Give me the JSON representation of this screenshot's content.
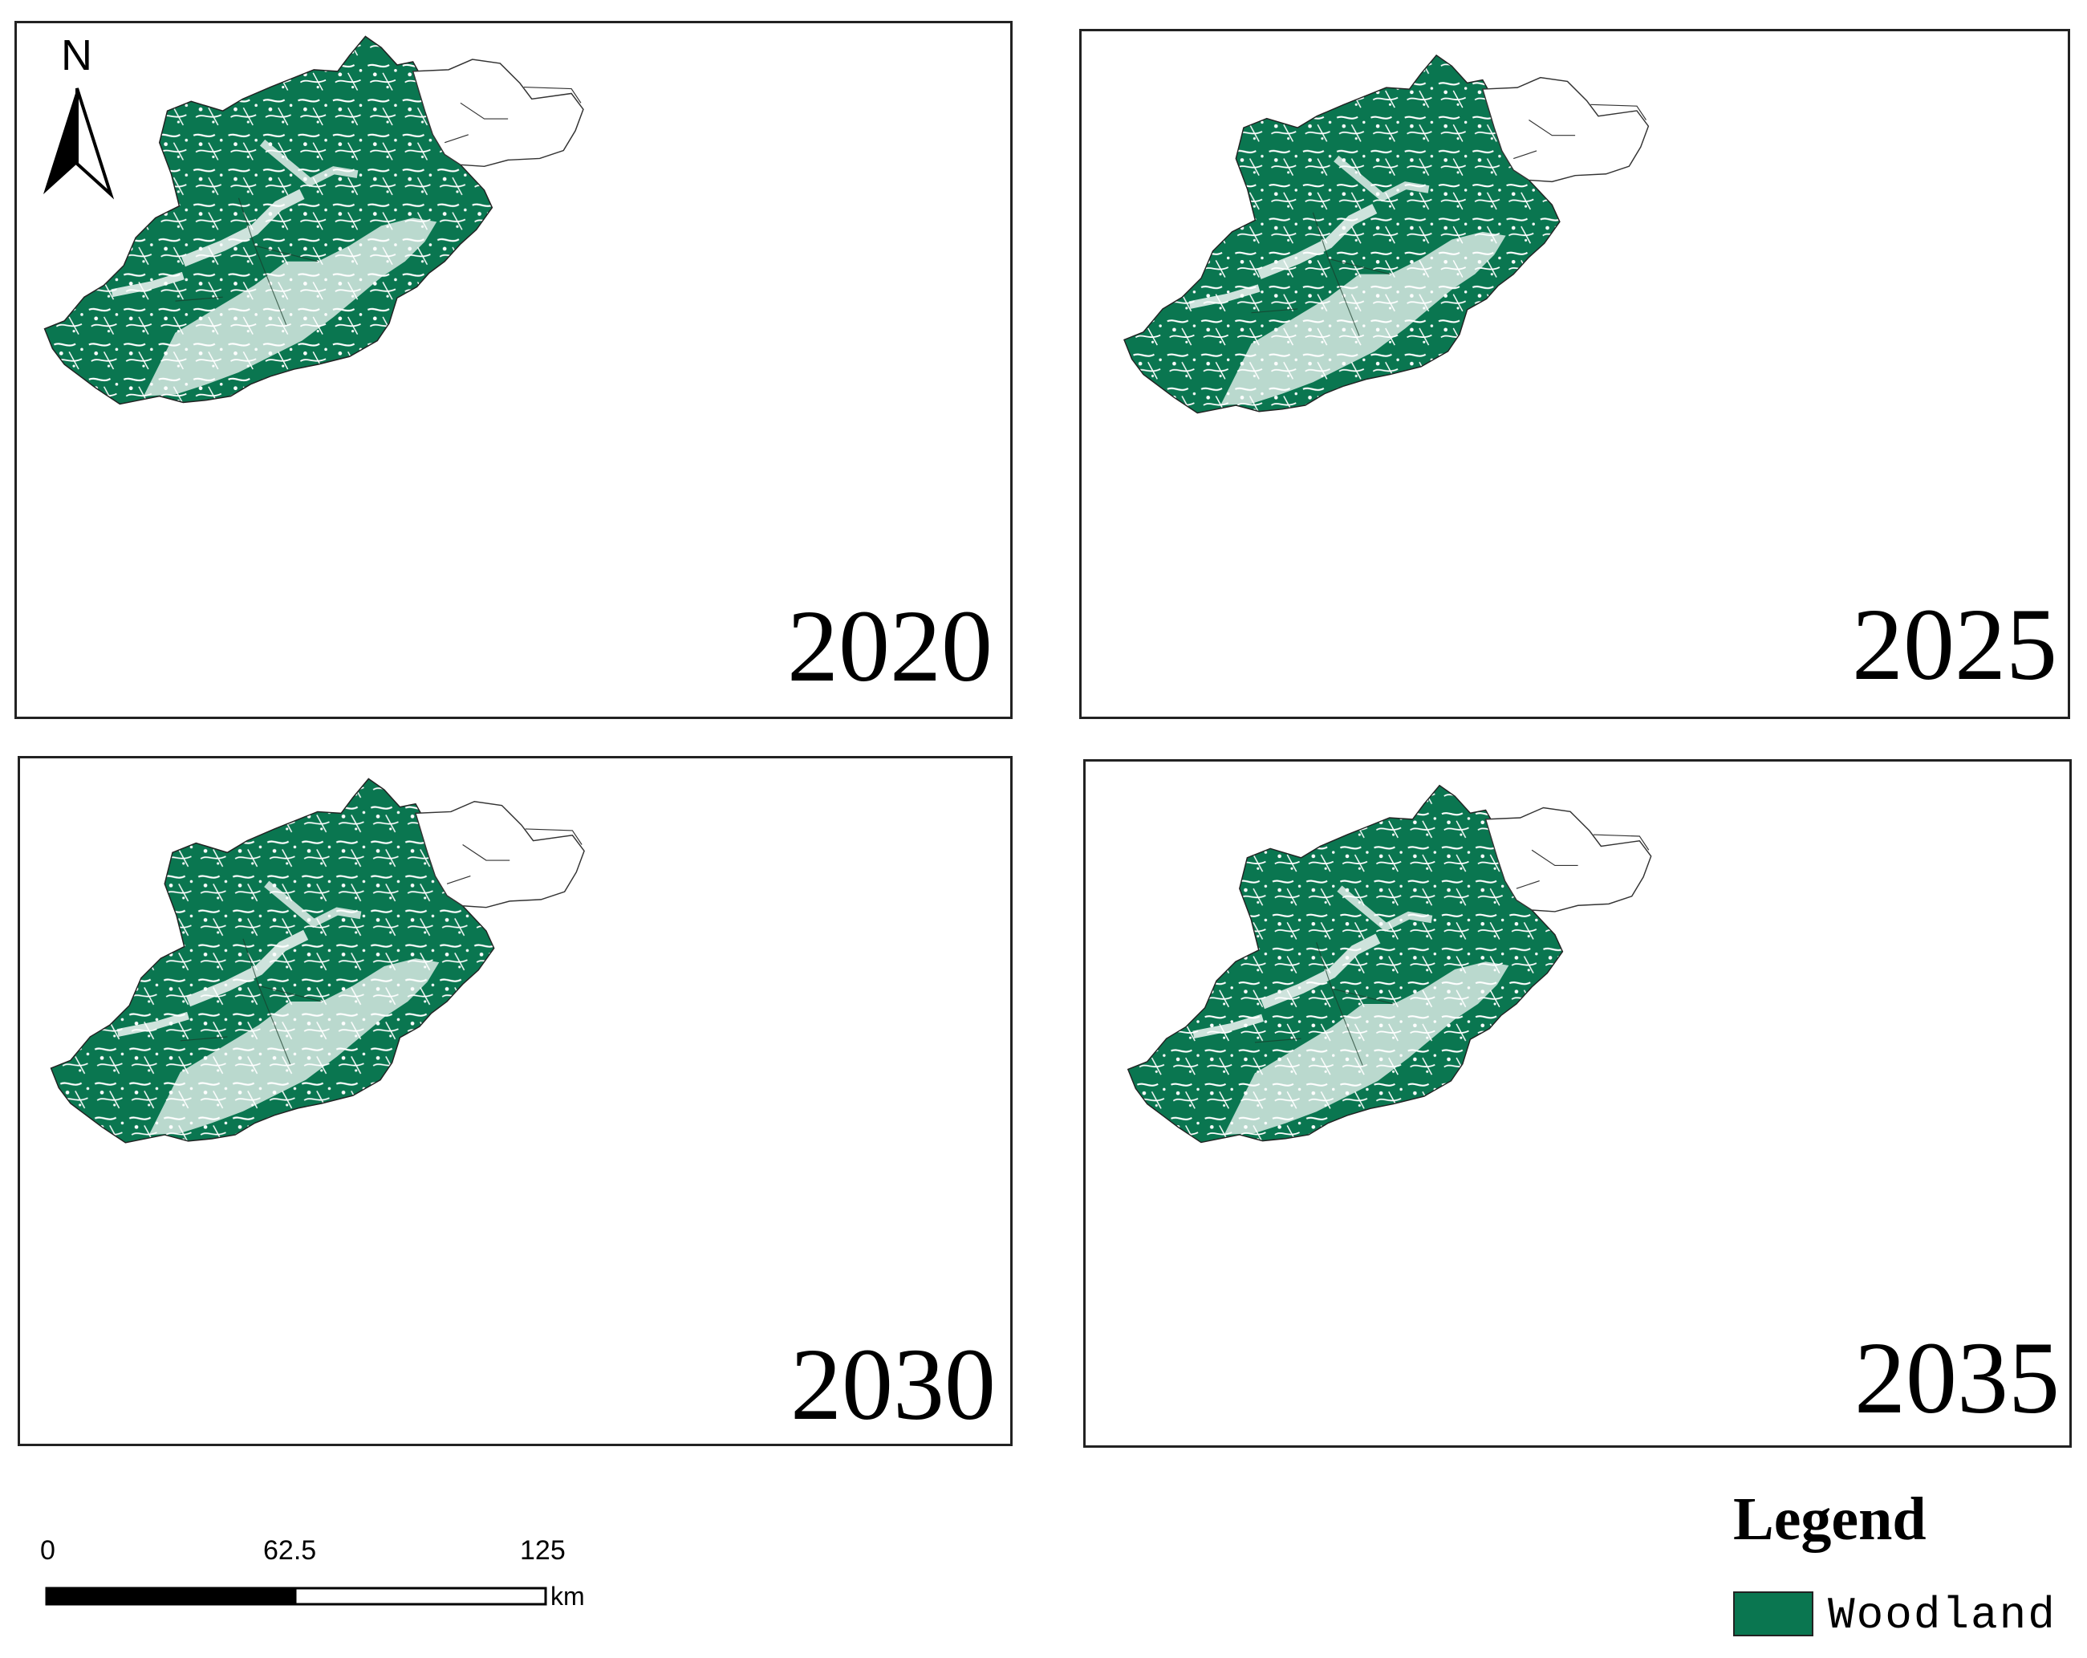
{
  "figure": {
    "panels": [
      {
        "year": "2020"
      },
      {
        "year": "2025"
      },
      {
        "year": "2030"
      },
      {
        "year": "2035"
      }
    ],
    "north_arrow": {
      "label": "N"
    },
    "scale_bar": {
      "ticks": [
        "0",
        "62.5",
        "125"
      ],
      "unit": "km"
    },
    "legend": {
      "title": "Legend",
      "items": [
        {
          "label": "Woodland",
          "color": "#0a7650"
        }
      ]
    }
  }
}
